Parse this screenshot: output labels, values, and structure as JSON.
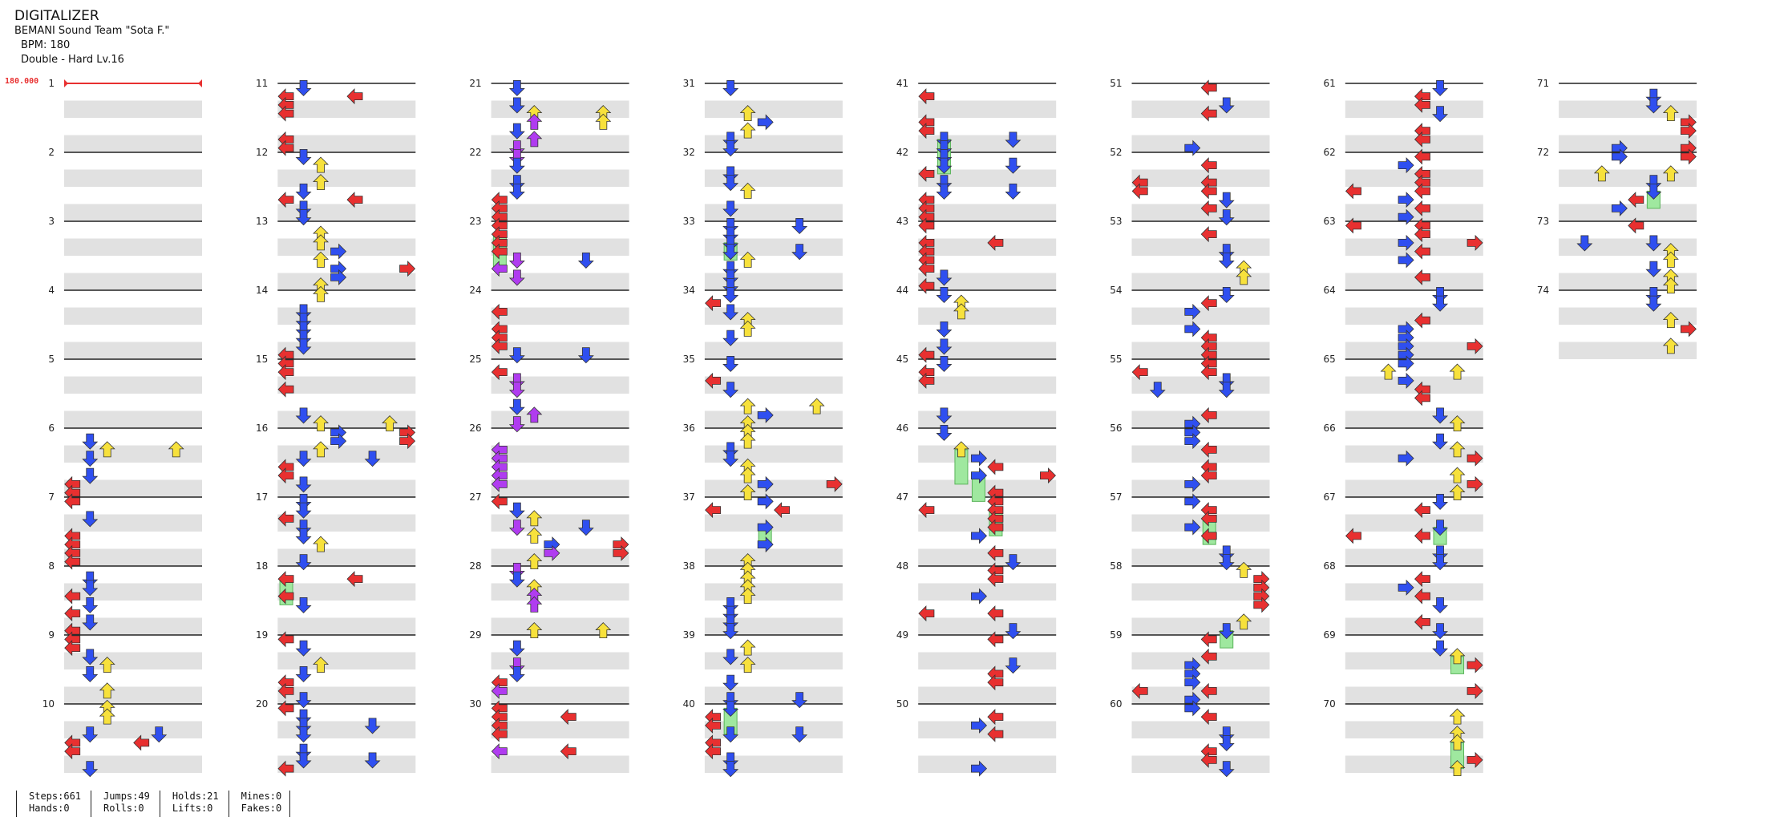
{
  "header": {
    "title": "DIGITALIZER",
    "artist": "BEMANI Sound Team \"Sota F.\"",
    "bpm": "BPM: 180",
    "difficulty": "Double - Hard  Lv.16"
  },
  "bpm_marker": "180.000",
  "colors": {
    "red_arrow": "#e83030",
    "blue_arrow": "#2f4ff0",
    "yellow_arrow": "#f7e13c",
    "purple_arrow": "#b03cf0",
    "hold": "#9fe89f",
    "band": "#e1e1e1",
    "measure_line": "#222222",
    "bpm_color": "#e83030"
  },
  "measure_labels": [
    "1",
    "2",
    "3",
    "4",
    "5",
    "6",
    "7",
    "8",
    "9",
    "10",
    "11",
    "12",
    "13",
    "14",
    "15",
    "16",
    "17",
    "18",
    "19",
    "20",
    "21",
    "22",
    "23",
    "24",
    "25",
    "26",
    "27",
    "28",
    "29",
    "30",
    "31",
    "32",
    "33",
    "34",
    "35",
    "36",
    "37",
    "38",
    "39",
    "40",
    "41",
    "42",
    "43",
    "44",
    "45",
    "46",
    "47",
    "48",
    "49",
    "50",
    "51",
    "52",
    "53",
    "54",
    "55",
    "56",
    "57",
    "58",
    "59",
    "60",
    "61",
    "62",
    "63",
    "64",
    "65",
    "66",
    "67",
    "68",
    "69",
    "70",
    "71",
    "72",
    "73",
    "74"
  ],
  "chart_data": {
    "type": "step_chart",
    "total_measures": 74,
    "measures_per_column": 10,
    "lanes": [
      "P1-left",
      "P1-down",
      "P1-up",
      "P1-right",
      "P2-left",
      "P2-down",
      "P2-up",
      "P2-right"
    ],
    "notes_seed": 1337
  },
  "stats": {
    "steps": "Steps:661",
    "jumps": "Jumps:49",
    "holds": "Holds:21",
    "mines": "Mines:0",
    "hands": "Hands:0",
    "rolls": "Rolls:0",
    "lifts": "Lifts:0",
    "fakes": "Fakes:0"
  }
}
